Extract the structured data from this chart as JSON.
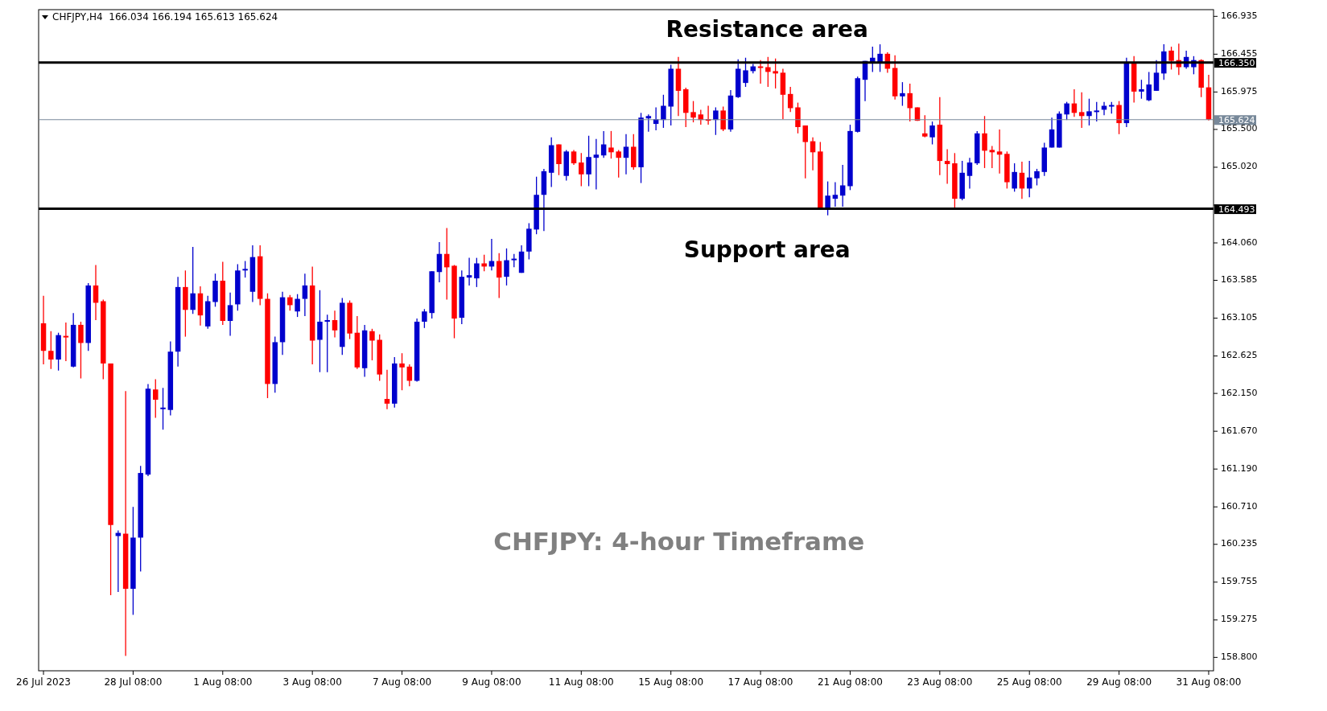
{
  "chart_data": {
    "type": "candlestick",
    "title": "CHFJPY,H4  166.034 166.194 165.613 165.624",
    "categories": [
      "26 Jul 2023",
      null,
      null,
      null,
      null,
      null,
      null,
      null,
      null,
      null,
      null,
      null,
      "28 Jul 08:00",
      null,
      null,
      null,
      null,
      null,
      null,
      null,
      null,
      null,
      null,
      null,
      "1 Aug 08:00",
      null,
      null,
      null,
      null,
      null,
      null,
      null,
      null,
      null,
      null,
      null,
      "3 Aug 08:00",
      null,
      null,
      null,
      null,
      null,
      null,
      null,
      null,
      null,
      null,
      null,
      "7 Aug 08:00",
      null,
      null,
      null,
      null,
      null,
      null,
      null,
      null,
      null,
      null,
      null,
      "9 Aug 08:00",
      null,
      null,
      null,
      null,
      null,
      null,
      null,
      null,
      null,
      null,
      null,
      "11 Aug 08:00",
      null,
      null,
      null,
      null,
      null,
      null,
      null,
      null,
      null,
      null,
      null,
      "15 Aug 08:00",
      null,
      null,
      null,
      null,
      null,
      null,
      null,
      null,
      null,
      null,
      null,
      "17 Aug 08:00",
      null,
      null,
      null,
      null,
      null,
      null,
      null,
      null,
      null,
      null,
      null,
      "21 Aug 08:00",
      null,
      null,
      null,
      null,
      null,
      null,
      null,
      null,
      null,
      null,
      null,
      "23 Aug 08:00",
      null,
      null,
      null,
      null,
      null,
      null,
      null,
      null,
      null,
      null,
      null,
      "25 Aug 08:00",
      null,
      null,
      null,
      null,
      null,
      null,
      null,
      null,
      null,
      null,
      null,
      "29 Aug 08:00",
      null,
      null,
      null,
      null,
      null,
      null,
      null,
      null,
      null,
      null,
      null,
      "31 Aug 08:00"
    ],
    "ohlc": [
      [
        163.04,
        163.39,
        162.52,
        162.69
      ],
      [
        162.69,
        162.94,
        162.46,
        162.58
      ],
      [
        162.58,
        162.92,
        162.44,
        162.89
      ],
      [
        162.88,
        163.05,
        162.56,
        162.86
      ],
      [
        162.49,
        163.17,
        162.48,
        163.02
      ],
      [
        163.02,
        163.06,
        162.34,
        162.79
      ],
      [
        162.79,
        163.55,
        162.69,
        163.52
      ],
      [
        163.52,
        163.78,
        163.08,
        163.3
      ],
      [
        163.32,
        163.34,
        162.33,
        162.53
      ],
      [
        162.53,
        162.53,
        159.59,
        160.48
      ],
      [
        160.34,
        160.41,
        159.63,
        160.38
      ],
      [
        160.37,
        162.18,
        158.82,
        159.67
      ],
      [
        159.67,
        160.71,
        159.34,
        160.32
      ],
      [
        160.32,
        161.23,
        159.89,
        161.14
      ],
      [
        161.12,
        162.27,
        161.1,
        162.21
      ],
      [
        162.2,
        162.33,
        161.84,
        162.07
      ],
      [
        161.95,
        162.22,
        161.69,
        161.97
      ],
      [
        161.94,
        162.81,
        161.87,
        162.68
      ],
      [
        162.68,
        163.63,
        162.49,
        163.5
      ],
      [
        163.5,
        163.71,
        162.87,
        163.21
      ],
      [
        163.21,
        164.01,
        163.16,
        163.42
      ],
      [
        163.42,
        163.51,
        163.01,
        163.14
      ],
      [
        163.0,
        163.39,
        162.97,
        163.32
      ],
      [
        163.31,
        163.67,
        163.25,
        163.58
      ],
      [
        163.58,
        163.82,
        163.02,
        163.07
      ],
      [
        163.07,
        163.43,
        162.88,
        163.27
      ],
      [
        163.28,
        163.79,
        163.2,
        163.71
      ],
      [
        163.71,
        163.83,
        163.62,
        163.73
      ],
      [
        163.44,
        164.03,
        163.31,
        163.88
      ],
      [
        163.89,
        164.03,
        163.27,
        163.35
      ],
      [
        163.35,
        163.42,
        162.09,
        162.27
      ],
      [
        162.27,
        162.87,
        162.16,
        162.8
      ],
      [
        162.8,
        163.44,
        162.64,
        163.37
      ],
      [
        163.37,
        163.4,
        163.2,
        163.27
      ],
      [
        163.19,
        163.41,
        163.12,
        163.35
      ],
      [
        163.35,
        163.67,
        163.13,
        163.52
      ],
      [
        163.52,
        163.76,
        162.52,
        162.82
      ],
      [
        162.83,
        163.46,
        162.42,
        163.06
      ],
      [
        163.06,
        163.15,
        162.42,
        163.08
      ],
      [
        163.08,
        163.2,
        162.86,
        162.95
      ],
      [
        162.74,
        163.36,
        162.64,
        163.3
      ],
      [
        163.3,
        163.33,
        162.84,
        162.91
      ],
      [
        162.92,
        163.13,
        162.46,
        162.48
      ],
      [
        162.47,
        163.02,
        162.36,
        162.95
      ],
      [
        162.94,
        162.97,
        162.57,
        162.82
      ],
      [
        162.83,
        162.9,
        162.31,
        162.39
      ],
      [
        162.08,
        162.45,
        161.95,
        162.02
      ],
      [
        162.02,
        162.61,
        161.97,
        162.53
      ],
      [
        162.53,
        162.66,
        162.19,
        162.48
      ],
      [
        162.49,
        162.52,
        162.24,
        162.31
      ],
      [
        162.31,
        163.1,
        162.3,
        163.06
      ],
      [
        163.06,
        163.22,
        162.98,
        163.19
      ],
      [
        163.17,
        163.7,
        163.1,
        163.7
      ],
      [
        163.69,
        164.07,
        163.56,
        163.92
      ],
      [
        163.92,
        164.25,
        163.34,
        163.75
      ],
      [
        163.77,
        163.78,
        162.85,
        163.1
      ],
      [
        163.11,
        163.71,
        163.03,
        163.63
      ],
      [
        163.62,
        163.87,
        163.52,
        163.65
      ],
      [
        163.61,
        163.87,
        163.5,
        163.8
      ],
      [
        163.8,
        163.91,
        163.7,
        163.76
      ],
      [
        163.76,
        164.11,
        163.71,
        163.83
      ],
      [
        163.83,
        163.93,
        163.36,
        163.62
      ],
      [
        163.63,
        163.99,
        163.52,
        163.84
      ],
      [
        163.84,
        163.92,
        163.75,
        163.86
      ],
      [
        163.68,
        164.03,
        163.68,
        163.95
      ],
      [
        163.95,
        164.31,
        163.85,
        164.24
      ],
      [
        164.23,
        164.9,
        164.17,
        164.67
      ],
      [
        164.67,
        165.0,
        164.21,
        164.97
      ],
      [
        164.95,
        165.4,
        164.77,
        165.3
      ],
      [
        165.31,
        165.31,
        164.92,
        165.06
      ],
      [
        164.91,
        165.24,
        164.85,
        165.22
      ],
      [
        165.22,
        165.24,
        165.05,
        165.07
      ],
      [
        165.08,
        165.2,
        164.78,
        164.93
      ],
      [
        164.93,
        165.42,
        164.78,
        165.15
      ],
      [
        165.14,
        165.38,
        164.74,
        165.18
      ],
      [
        165.17,
        165.48,
        165.14,
        165.31
      ],
      [
        165.27,
        165.48,
        165.13,
        165.21
      ],
      [
        165.22,
        165.24,
        164.89,
        165.14
      ],
      [
        165.14,
        165.44,
        164.93,
        165.28
      ],
      [
        165.28,
        165.44,
        164.99,
        165.02
      ],
      [
        165.02,
        165.71,
        164.82,
        165.65
      ],
      [
        165.64,
        165.69,
        165.47,
        165.67
      ],
      [
        165.57,
        165.78,
        165.49,
        165.63
      ],
      [
        165.62,
        165.94,
        165.52,
        165.8
      ],
      [
        165.79,
        166.32,
        165.55,
        166.27
      ],
      [
        166.27,
        166.42,
        165.67,
        165.99
      ],
      [
        166.01,
        166.03,
        165.53,
        165.71
      ],
      [
        165.72,
        165.86,
        165.59,
        165.65
      ],
      [
        165.69,
        165.75,
        165.56,
        165.62
      ],
      [
        165.63,
        165.8,
        165.56,
        165.61
      ],
      [
        165.62,
        165.78,
        165.43,
        165.74
      ],
      [
        165.74,
        165.79,
        165.48,
        165.5
      ],
      [
        165.5,
        166.0,
        165.47,
        165.93
      ],
      [
        165.91,
        166.39,
        165.9,
        166.27
      ],
      [
        166.09,
        166.41,
        166.04,
        166.25
      ],
      [
        166.24,
        166.33,
        166.21,
        166.3
      ],
      [
        166.3,
        166.38,
        166.08,
        166.28
      ],
      [
        166.29,
        166.42,
        166.04,
        166.23
      ],
      [
        166.24,
        166.4,
        166.02,
        166.21
      ],
      [
        166.22,
        166.27,
        165.63,
        165.94
      ],
      [
        165.95,
        166.04,
        165.72,
        165.77
      ],
      [
        165.78,
        165.84,
        165.45,
        165.53
      ],
      [
        165.55,
        165.55,
        164.88,
        165.34
      ],
      [
        165.35,
        165.4,
        164.98,
        165.21
      ],
      [
        165.22,
        165.34,
        164.49,
        164.49
      ],
      [
        164.49,
        164.84,
        164.41,
        164.66
      ],
      [
        164.62,
        164.83,
        164.52,
        164.67
      ],
      [
        164.66,
        165.05,
        164.52,
        164.79
      ],
      [
        164.78,
        165.56,
        164.73,
        165.48
      ],
      [
        165.47,
        166.17,
        165.46,
        166.15
      ],
      [
        166.13,
        166.37,
        165.86,
        166.37
      ],
      [
        166.35,
        166.55,
        166.23,
        166.41
      ],
      [
        166.35,
        166.58,
        166.23,
        166.46
      ],
      [
        166.46,
        166.48,
        166.22,
        166.27
      ],
      [
        166.28,
        166.44,
        165.88,
        165.92
      ],
      [
        165.92,
        166.1,
        165.8,
        165.96
      ],
      [
        165.96,
        166.08,
        165.6,
        165.77
      ],
      [
        165.78,
        165.78,
        165.61,
        165.61
      ],
      [
        165.45,
        165.68,
        165.4,
        165.41
      ],
      [
        165.4,
        165.6,
        165.31,
        165.55
      ],
      [
        165.56,
        165.91,
        164.92,
        165.1
      ],
      [
        165.1,
        165.25,
        164.81,
        165.06
      ],
      [
        165.07,
        165.2,
        164.49,
        164.62
      ],
      [
        164.62,
        165.1,
        164.6,
        164.95
      ],
      [
        164.91,
        165.14,
        164.75,
        165.08
      ],
      [
        165.07,
        165.48,
        165.05,
        165.45
      ],
      [
        165.45,
        165.67,
        165.01,
        165.23
      ],
      [
        165.24,
        165.29,
        165.01,
        165.21
      ],
      [
        165.22,
        165.5,
        164.94,
        165.18
      ],
      [
        165.19,
        165.22,
        164.75,
        164.83
      ],
      [
        164.75,
        165.07,
        164.71,
        164.96
      ],
      [
        164.95,
        165.09,
        164.62,
        164.75
      ],
      [
        164.75,
        165.1,
        164.64,
        164.89
      ],
      [
        164.88,
        165.0,
        164.79,
        164.97
      ],
      [
        164.96,
        165.33,
        164.91,
        165.27
      ],
      [
        165.27,
        165.65,
        165.27,
        165.5
      ],
      [
        165.27,
        165.73,
        165.27,
        165.7
      ],
      [
        165.69,
        165.85,
        165.62,
        165.83
      ],
      [
        165.83,
        166.01,
        165.66,
        165.71
      ],
      [
        165.72,
        165.97,
        165.52,
        165.67
      ],
      [
        165.67,
        165.89,
        165.55,
        165.73
      ],
      [
        165.72,
        165.85,
        165.6,
        165.74
      ],
      [
        165.75,
        165.85,
        165.68,
        165.8
      ],
      [
        165.79,
        165.85,
        165.7,
        165.81
      ],
      [
        165.81,
        165.86,
        165.44,
        165.58
      ],
      [
        165.58,
        166.41,
        165.53,
        166.34
      ],
      [
        166.34,
        166.43,
        165.84,
        165.98
      ],
      [
        165.98,
        166.13,
        165.89,
        166.01
      ],
      [
        165.87,
        166.23,
        165.86,
        166.07
      ],
      [
        165.99,
        166.38,
        165.99,
        166.22
      ],
      [
        166.21,
        166.58,
        166.13,
        166.49
      ],
      [
        166.5,
        166.55,
        166.26,
        166.37
      ],
      [
        166.38,
        166.59,
        166.19,
        166.29
      ],
      [
        166.29,
        166.5,
        166.27,
        166.42
      ],
      [
        166.29,
        166.43,
        166.2,
        166.38
      ],
      [
        166.38,
        166.39,
        165.91,
        166.03
      ],
      [
        166.034,
        166.194,
        165.613,
        165.624
      ]
    ],
    "colors": [
      "#ff0000",
      "#ff0000",
      "#0000cd",
      "#ff0000",
      "#0000cd",
      "#ff0000",
      "#0000cd",
      "#ff0000",
      "#ff0000",
      "#ff0000",
      "#0000cd",
      "#ff0000",
      "#0000cd",
      "#0000cd",
      "#0000cd",
      "#ff0000",
      "#0000cd",
      "#0000cd",
      "#0000cd",
      "#ff0000",
      "#0000cd",
      "#ff0000",
      "#0000cd",
      "#0000cd",
      "#ff0000",
      "#0000cd",
      "#0000cd",
      "#0000cd",
      "#0000cd",
      "#ff0000",
      "#ff0000",
      "#0000cd",
      "#0000cd",
      "#ff0000",
      "#0000cd",
      "#0000cd",
      "#ff0000",
      "#0000cd",
      "#0000cd",
      "#ff0000",
      "#0000cd",
      "#ff0000",
      "#ff0000",
      "#0000cd",
      "#ff0000",
      "#ff0000",
      "#ff0000",
      "#0000cd",
      "#ff0000",
      "#ff0000",
      "#0000cd",
      "#0000cd",
      "#0000cd",
      "#0000cd",
      "#ff0000",
      "#ff0000",
      "#0000cd",
      "#0000cd",
      "#0000cd",
      "#ff0000",
      "#0000cd",
      "#ff0000",
      "#0000cd",
      "#0000cd",
      "#0000cd",
      "#0000cd",
      "#0000cd",
      "#0000cd",
      "#0000cd",
      "#ff0000",
      "#0000cd",
      "#ff0000",
      "#ff0000",
      "#0000cd",
      "#0000cd",
      "#0000cd",
      "#ff0000",
      "#ff0000",
      "#0000cd",
      "#ff0000",
      "#0000cd",
      "#0000cd",
      "#0000cd",
      "#0000cd",
      "#0000cd",
      "#ff0000",
      "#ff0000",
      "#ff0000",
      "#ff0000",
      "#ff0000",
      "#0000cd",
      "#ff0000",
      "#0000cd",
      "#0000cd",
      "#0000cd",
      "#0000cd",
      "#ff0000",
      "#ff0000",
      "#ff0000",
      "#ff0000",
      "#ff0000",
      "#ff0000",
      "#ff0000",
      "#ff0000",
      "#ff0000",
      "#0000cd",
      "#0000cd",
      "#0000cd",
      "#0000cd",
      "#0000cd",
      "#0000cd",
      "#0000cd",
      "#0000cd",
      "#ff0000",
      "#ff0000",
      "#0000cd",
      "#ff0000",
      "#ff0000",
      "#ff0000",
      "#0000cd",
      "#ff0000",
      "#ff0000",
      "#ff0000",
      "#0000cd",
      "#0000cd",
      "#0000cd",
      "#ff0000",
      "#ff0000",
      "#ff0000",
      "#ff0000",
      "#0000cd",
      "#ff0000",
      "#0000cd",
      "#0000cd",
      "#0000cd",
      "#0000cd",
      "#0000cd",
      "#0000cd",
      "#ff0000",
      "#ff0000",
      "#0000cd",
      "#0000cd",
      "#0000cd",
      "#0000cd",
      "#ff0000",
      "#0000cd",
      "#ff0000",
      "#0000cd",
      "#0000cd",
      "#0000cd",
      "#0000cd",
      "#ff0000",
      "#ff0000",
      "#0000cd",
      "#0000cd",
      "#ff0000",
      "#ff0000"
    ],
    "ylim": [
      158.63,
      167.02
    ],
    "yticks": [
      166.935,
      166.455,
      165.975,
      {
        "value": 165.5,
        "label": "165.500"
      },
      {
        "value": 165.02,
        "label": "165.020"
      },
      {
        "value": 164.54,
        "label": null
      },
      {
        "value": 164.06,
        "label": "164.060"
      },
      163.585,
      163.105,
      162.625,
      {
        "value": 162.15,
        "label": "162.150"
      },
      {
        "value": 161.67,
        "label": "161.670"
      },
      {
        "value": 161.19,
        "label": "161.190"
      },
      {
        "value": 160.71,
        "label": "160.710"
      },
      160.235,
      159.755,
      159.275,
      {
        "value": 158.8,
        "label": "158.800"
      }
    ],
    "ref_lines": [
      {
        "axis": "y",
        "value": 166.35,
        "label": "166.350",
        "color": "#000000"
      },
      {
        "axis": "y",
        "value": 165.624,
        "label": "165.624",
        "color": "#778899"
      },
      {
        "axis": "y",
        "value": 164.493,
        "label": "164.493",
        "color": "#000000"
      }
    ],
    "annotations": [
      "Resistance area",
      "Support area",
      "CHFJPY: 4-hour Timeframe"
    ]
  }
}
